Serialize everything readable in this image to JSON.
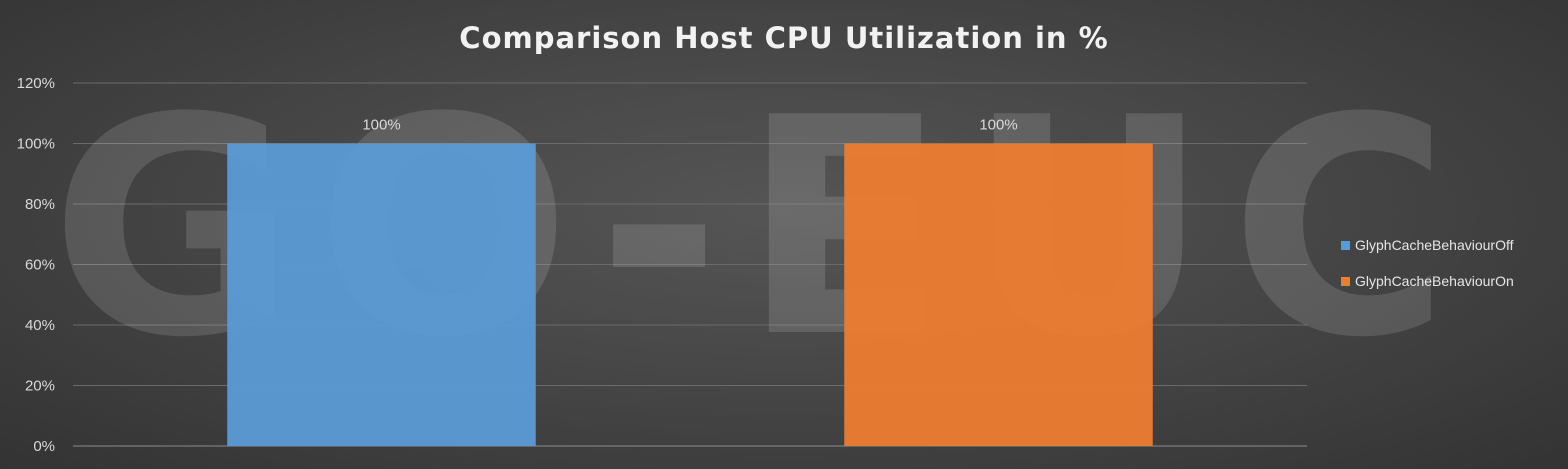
{
  "chart_data": {
    "type": "bar",
    "title": "Comparison Host CPU Utilization in %",
    "categories": [
      "",
      ""
    ],
    "series": [
      {
        "name": "GlyphCacheBehaviourOff",
        "values": [
          100,
          null
        ],
        "color": "#5b9bd5"
      },
      {
        "name": "GlyphCacheBehaviourOn",
        "values": [
          null,
          100
        ],
        "color": "#ed7d31"
      }
    ],
    "data_labels": [
      "100%",
      "100%"
    ],
    "ylim": [
      0,
      120
    ],
    "yticks": [
      "0%",
      "20%",
      "40%",
      "60%",
      "80%",
      "100%",
      "120%"
    ],
    "grid": true,
    "legend_position": "right",
    "xlabel": "",
    "ylabel": ""
  },
  "watermark": "GO-EUC"
}
